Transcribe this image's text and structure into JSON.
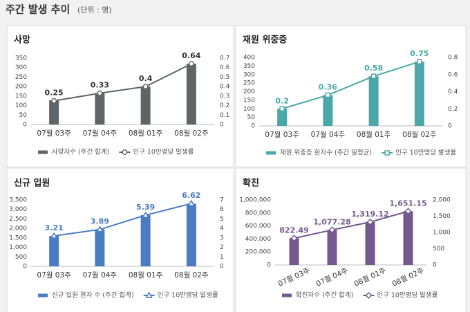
{
  "header": {
    "title": "주간 발생 추이",
    "unit": "(단위 : 명)"
  },
  "chart_data": [
    {
      "type": "combo",
      "title": "사망",
      "categories": [
        "07월 03주",
        "07월 04주",
        "08월 01주",
        "08월 02주"
      ],
      "series": [
        {
          "name": "사망자수 (주간 합계)",
          "color": "#5f6566",
          "type": "bar",
          "values": [
            128,
            165,
            200,
            320
          ]
        },
        {
          "name": "인구 10만명당 발생률",
          "color": "#5f6566",
          "type": "line",
          "axis": "y2",
          "marker": "circle",
          "values": [
            0.25,
            0.33,
            0.4,
            0.64
          ]
        }
      ],
      "ylim": [
        0,
        350
      ],
      "yticks": [
        0,
        50,
        100,
        150,
        200,
        250,
        300,
        350
      ],
      "y2lim": [
        0,
        0.7
      ],
      "y2ticks": [
        0,
        0.1,
        0.2,
        0.3,
        0.4,
        0.5,
        0.6,
        0.7
      ],
      "grid": false
    },
    {
      "type": "combo",
      "title": "재원 위중증",
      "categories": [
        "07월 03주",
        "07월 04주",
        "08월 01주",
        "08월 02주"
      ],
      "series": [
        {
          "name": "재원 위중증 환자수 (주간 일평균)",
          "color": "#4aa8a8",
          "type": "bar",
          "values": [
            100,
            180,
            290,
            375
          ]
        },
        {
          "name": "인구 10만명당 발생률",
          "color": "#4aa8a8",
          "type": "line",
          "axis": "y2",
          "marker": "square",
          "values": [
            0.2,
            0.36,
            0.58,
            0.75
          ]
        }
      ],
      "ylim": [
        0,
        400
      ],
      "yticks": [
        0,
        50,
        100,
        150,
        200,
        250,
        300,
        350,
        400
      ],
      "y2lim": [
        0,
        0.8
      ],
      "y2ticks": [
        0,
        0.2,
        0.4,
        0.6,
        0.8
      ],
      "grid": false
    },
    {
      "type": "combo",
      "title": "신규 입원",
      "categories": [
        "07월 03주",
        "07월 04주",
        "08월 01주",
        "08월 02주"
      ],
      "series": [
        {
          "name": "신규 입원 환자 수 (주간 합계)",
          "color": "#4a7cc4",
          "type": "bar",
          "values": [
            1600,
            1950,
            2700,
            3300
          ]
        },
        {
          "name": "인구 10만명당 발생률",
          "color": "#4a7cc4",
          "type": "line",
          "axis": "y2",
          "marker": "triangle",
          "values": [
            3.21,
            3.89,
            5.39,
            6.62
          ]
        }
      ],
      "ylim": [
        0,
        3500
      ],
      "yticks": [
        0,
        500,
        {
          "value": 1000,
          "label": "1,000"
        },
        {
          "value": 1500,
          "label": "1,500"
        },
        {
          "value": 2000,
          "label": "2,000"
        },
        {
          "value": 2500,
          "label": "2,500"
        },
        {
          "value": 3000,
          "label": "3,000"
        },
        {
          "value": 3500,
          "label": "3,500"
        }
      ],
      "y2lim": [
        0,
        7
      ],
      "y2ticks": [
        0,
        1,
        2,
        3,
        4,
        5,
        6,
        7
      ],
      "grid": false
    },
    {
      "type": "combo",
      "title": "확진",
      "categories": [
        "07월 03주",
        "07월 04주",
        "08월 01주",
        "08월 02주"
      ],
      "series": [
        {
          "name": "확진자수 (주간 합계)",
          "color": "#74598f",
          "type": "bar",
          "values": [
            411000,
            538000,
            660000,
            825000
          ]
        },
        {
          "name": "인구 10만명당 발생률",
          "color": "#74598f",
          "type": "line",
          "axis": "y2",
          "marker": "diamond",
          "values": [
            822.49,
            1077.28,
            1319.12,
            1651.15
          ],
          "value_labels": [
            "822.49",
            "1,077.28",
            "1,319.12",
            "1,651.15"
          ]
        }
      ],
      "ylim": [
        0,
        1000000
      ],
      "yticks": [
        0,
        {
          "value": 200000,
          "label": "200,000"
        },
        {
          "value": 400000,
          "label": "400,000"
        },
        {
          "value": 600000,
          "label": "600,000"
        },
        {
          "value": 800000,
          "label": "800,000"
        },
        {
          "value": 1000000,
          "label": "1,000,000"
        }
      ],
      "y2lim": [
        0,
        2000
      ],
      "y2ticks": [
        0,
        500,
        {
          "value": 1000,
          "label": "1,000"
        },
        {
          "value": 1500,
          "label": "1,500"
        },
        {
          "value": 2000,
          "label": "2,000"
        }
      ],
      "grid": false,
      "xtick_rotation": -25
    }
  ]
}
